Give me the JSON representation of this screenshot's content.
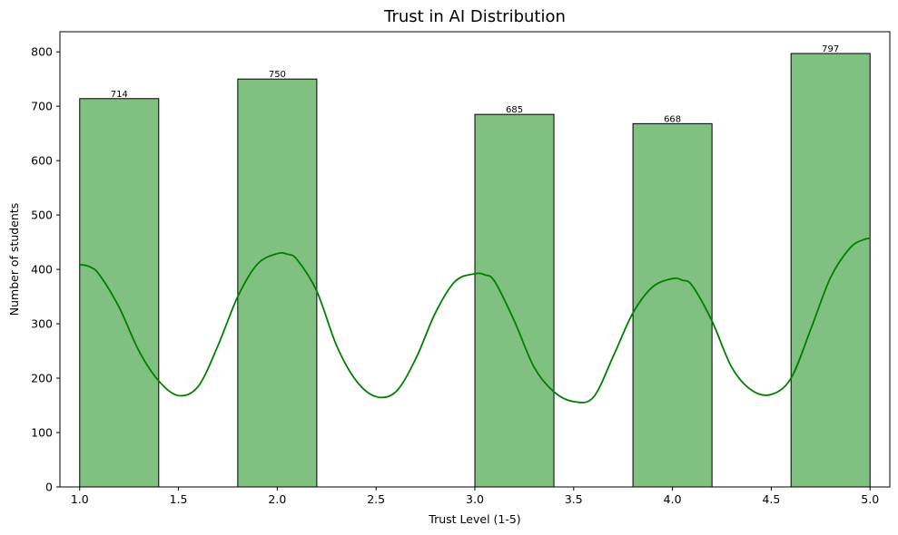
{
  "chart_data": {
    "type": "bar",
    "title": "Trust in AI Distribution",
    "xlabel": "Trust Level (1-5)",
    "ylabel": "Number of students",
    "xlim": [
      0.9,
      5.1
    ],
    "ylim": [
      0,
      837
    ],
    "x_ticks": [
      1.0,
      1.5,
      2.0,
      2.5,
      3.0,
      3.5,
      4.0,
      4.5,
      5.0
    ],
    "x_tick_labels": [
      "1.0",
      "1.5",
      "2.0",
      "2.5",
      "3.0",
      "3.5",
      "4.0",
      "4.5",
      "5.0"
    ],
    "y_ticks": [
      0,
      100,
      200,
      300,
      400,
      500,
      600,
      700,
      800
    ],
    "y_tick_labels": [
      "0",
      "100",
      "200",
      "300",
      "400",
      "500",
      "600",
      "700",
      "800"
    ],
    "bars": [
      {
        "x0": 1.0,
        "x1": 1.4,
        "value": 714,
        "label": "714"
      },
      {
        "x0": 1.8,
        "x1": 2.2,
        "value": 750,
        "label": "750"
      },
      {
        "x0": 3.0,
        "x1": 3.4,
        "value": 685,
        "label": "685"
      },
      {
        "x0": 3.8,
        "x1": 4.2,
        "value": 668,
        "label": "668"
      },
      {
        "x0": 4.6,
        "x1": 5.0,
        "value": 797,
        "label": "797"
      }
    ],
    "kde": {
      "x": [
        1.0,
        1.05,
        1.1,
        1.2,
        1.3,
        1.4,
        1.5,
        1.6,
        1.7,
        1.8,
        1.9,
        2.0,
        2.05,
        2.1,
        2.2,
        2.3,
        2.4,
        2.5,
        2.6,
        2.7,
        2.8,
        2.9,
        3.0,
        3.05,
        3.1,
        3.2,
        3.3,
        3.4,
        3.5,
        3.6,
        3.7,
        3.8,
        3.9,
        4.0,
        4.05,
        4.1,
        4.2,
        4.3,
        4.4,
        4.5,
        4.6,
        4.7,
        4.8,
        4.9,
        4.97,
        5.0
      ],
      "y": [
        409,
        405,
        390,
        330,
        250,
        195,
        168,
        185,
        260,
        350,
        410,
        429,
        428,
        418,
        360,
        260,
        195,
        166,
        175,
        235,
        320,
        378,
        392,
        390,
        378,
        305,
        220,
        175,
        157,
        165,
        240,
        320,
        368,
        383,
        380,
        370,
        305,
        220,
        178,
        170,
        200,
        290,
        385,
        440,
        455,
        457
      ]
    },
    "bar_color": "#80c080",
    "bar_edge_color": "#000000",
    "kde_color": "#008000",
    "grid": false,
    "legend": "none"
  }
}
